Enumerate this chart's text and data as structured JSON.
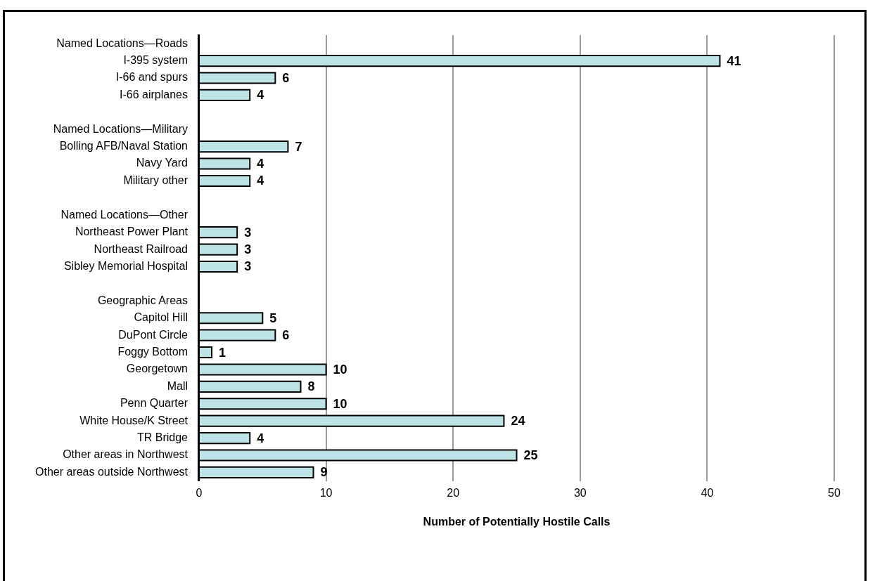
{
  "chart_data": {
    "type": "bar",
    "orientation": "horizontal",
    "xlabel": "Number of Potentially Hostile Calls",
    "categories": [
      "Named Locations—Roads",
      "I-395 system",
      "I-66 and spurs",
      "I-66 airplanes",
      null,
      "Named Locations—Military",
      "Bolling AFB/Naval Station",
      "Navy Yard",
      "Military other",
      null,
      "Named Locations—Other",
      "Northeast Power Plant",
      "Northeast Railroad",
      "Sibley Memorial Hospital",
      null,
      "Geographic Areas",
      "Capitol Hill",
      "DuPont Circle",
      "Foggy Bottom",
      "Georgetown",
      "Mall",
      "Penn Quarter",
      "White House/K Street",
      "TR Bridge",
      "Other areas in Northwest",
      "Other areas outside Northwest"
    ],
    "values": [
      null,
      41,
      6,
      4,
      null,
      null,
      7,
      4,
      4,
      null,
      null,
      3,
      3,
      3,
      null,
      null,
      5,
      6,
      1,
      10,
      8,
      10,
      24,
      4,
      25,
      9
    ],
    "color": "#bde3e6",
    "xlim": [
      0,
      50
    ],
    "xticks": [
      0,
      10,
      20,
      30,
      40,
      50
    ],
    "grid": "x",
    "data_labels": true,
    "legend": false
  }
}
